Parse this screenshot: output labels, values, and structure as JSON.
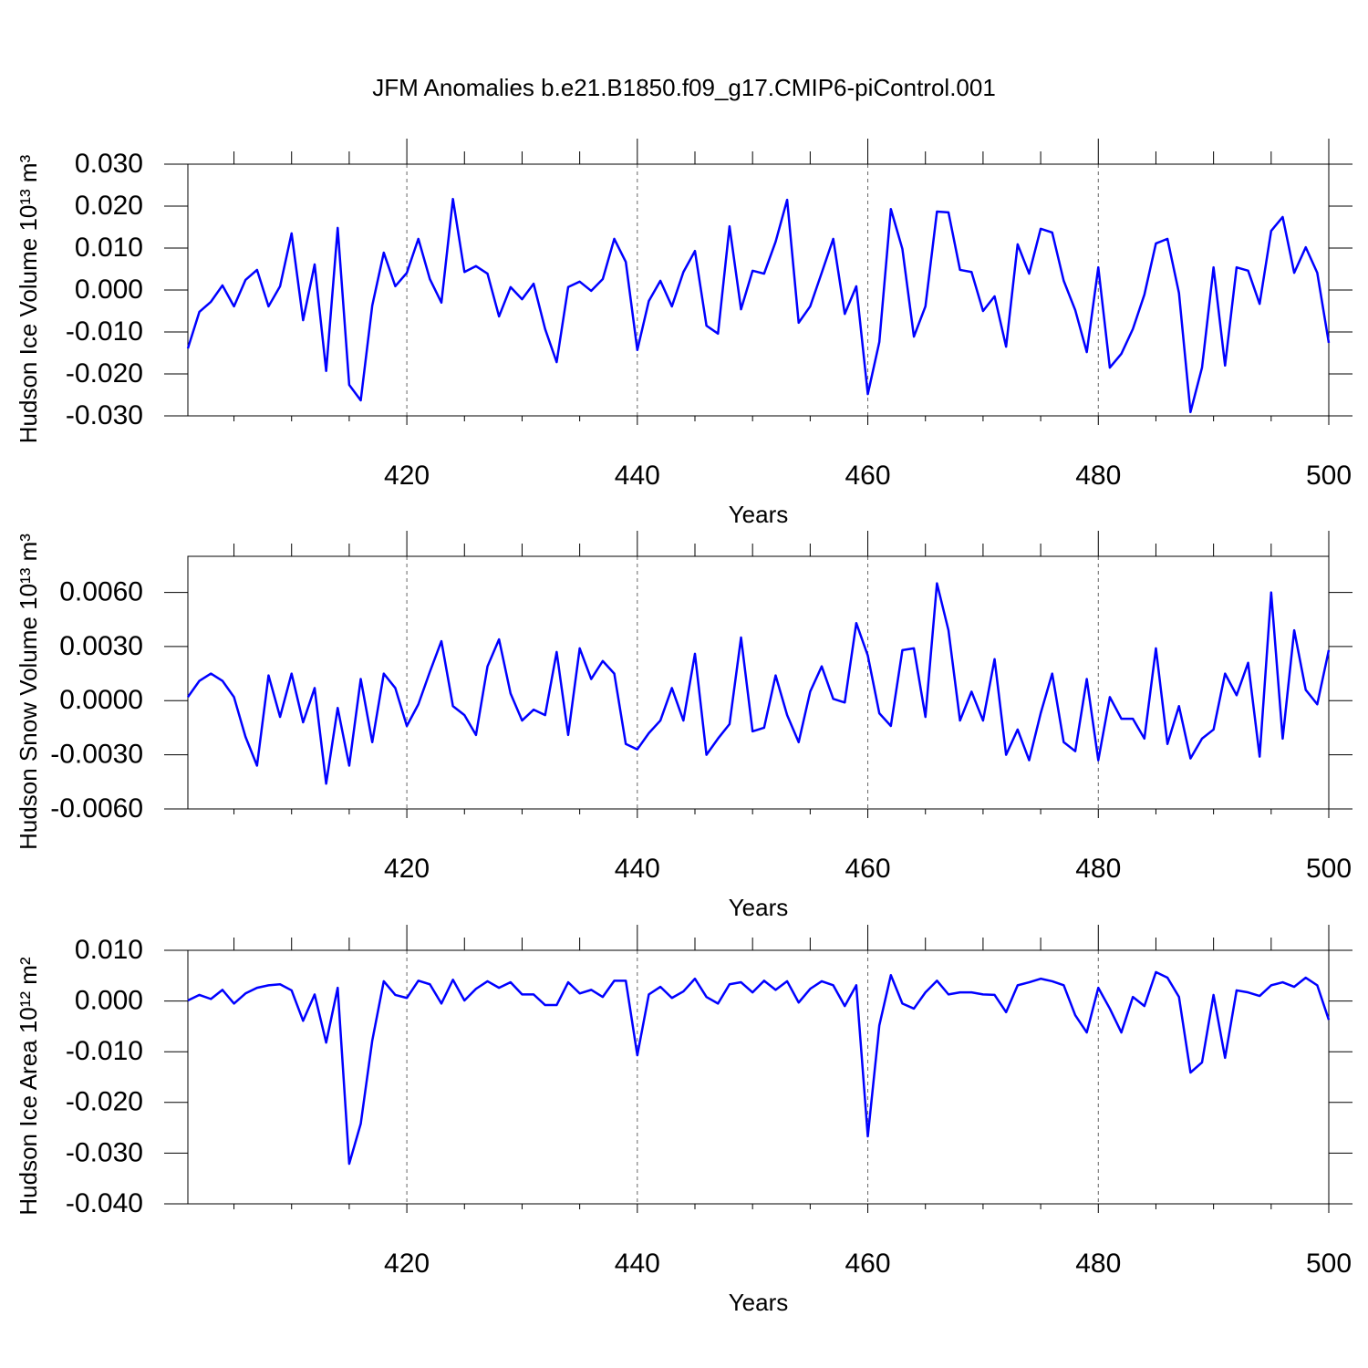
{
  "title": "JFM Anomalies b.e21.B1850.f09_g17.CMIP6-piControl.001",
  "chart_data": [
    {
      "type": "line",
      "ylabel": "Hudson Ice Volume 10¹³ m³",
      "xlabel": "Years",
      "x": [
        401,
        402,
        403,
        404,
        405,
        406,
        407,
        408,
        409,
        410,
        411,
        412,
        413,
        414,
        415,
        416,
        417,
        418,
        419,
        420,
        421,
        422,
        423,
        424,
        425,
        426,
        427,
        428,
        429,
        430,
        431,
        432,
        433,
        434,
        435,
        436,
        437,
        438,
        439,
        440,
        441,
        442,
        443,
        444,
        445,
        446,
        447,
        448,
        449,
        450,
        451,
        452,
        453,
        454,
        455,
        456,
        457,
        458,
        459,
        460,
        461,
        462,
        463,
        464,
        465,
        466,
        467,
        468,
        469,
        470,
        471,
        472,
        473,
        474,
        475,
        476,
        477,
        478,
        479,
        480,
        481,
        482,
        483,
        484,
        485,
        486,
        487,
        488,
        489,
        490,
        491,
        492,
        493,
        494,
        495,
        496,
        497,
        498,
        499,
        500
      ],
      "xlim": [
        401,
        500
      ],
      "xticks": [
        420,
        440,
        460,
        480,
        500
      ],
      "xminorticks": [
        405,
        410,
        415,
        425,
        430,
        435,
        445,
        450,
        455,
        465,
        470,
        475,
        485,
        490,
        495
      ],
      "xgrid": true,
      "ylim": [
        -0.03,
        0.03
      ],
      "yticks": [
        {
          "value": -0.03,
          "label": "-0.030"
        },
        {
          "value": -0.02,
          "label": "-0.020"
        },
        {
          "value": -0.01,
          "label": "-0.010"
        },
        {
          "value": 0,
          "label": "0.000"
        },
        {
          "value": 0.01,
          "label": "0.010"
        },
        {
          "value": 0.02,
          "label": "0.020"
        },
        {
          "value": 0.03,
          "label": "0.030"
        }
      ],
      "series": [
        {
          "color": "#0000ff",
          "values": [
            -0.0139,
            -0.0052,
            -0.0028,
            0.0011,
            -0.0039,
            0.0024,
            0.0048,
            -0.0039,
            0.0009,
            0.0135,
            -0.0072,
            0.0061,
            -0.0193,
            0.0148,
            -0.0226,
            -0.0263,
            -0.0037,
            0.0089,
            0.0009,
            0.0041,
            0.0122,
            0.0026,
            -0.003,
            0.0217,
            0.0043,
            0.0057,
            0.0039,
            -0.0063,
            0.0007,
            -0.0022,
            0.0015,
            -0.0093,
            -0.0172,
            0.0007,
            0.002,
            -0.0002,
            0.0026,
            0.0122,
            0.0067,
            -0.0143,
            -0.0026,
            0.0022,
            -0.0039,
            0.0043,
            0.0093,
            -0.0085,
            -0.0104,
            0.0152,
            -0.0046,
            0.0046,
            0.0039,
            0.0115,
            0.0215,
            -0.0078,
            -0.0039,
            0.0041,
            0.0122,
            -0.0057,
            0.0009,
            -0.0248,
            -0.0124,
            0.0193,
            0.0098,
            -0.0111,
            -0.0039,
            0.0187,
            0.0185,
            0.0048,
            0.0043,
            -0.005,
            -0.0015,
            -0.0135,
            0.0109,
            0.0039,
            0.0146,
            0.0137,
            0.0022,
            -0.0048,
            -0.0148,
            0.0054,
            -0.0185,
            -0.0152,
            -0.0093,
            -0.0011,
            0.0111,
            0.0122,
            -0.0007,
            -0.0291,
            -0.0185,
            0.0054,
            -0.018,
            0.0054,
            0.0046,
            -0.0033,
            0.0141,
            0.0174,
            0.0041,
            0.0102,
            0.0041,
            -0.0126
          ]
        }
      ]
    },
    {
      "type": "line",
      "ylabel": "Hudson Snow Volume 10¹³ m³",
      "xlabel": "Years",
      "x": [
        401,
        402,
        403,
        404,
        405,
        406,
        407,
        408,
        409,
        410,
        411,
        412,
        413,
        414,
        415,
        416,
        417,
        418,
        419,
        420,
        421,
        422,
        423,
        424,
        425,
        426,
        427,
        428,
        429,
        430,
        431,
        432,
        433,
        434,
        435,
        436,
        437,
        438,
        439,
        440,
        441,
        442,
        443,
        444,
        445,
        446,
        447,
        448,
        449,
        450,
        451,
        452,
        453,
        454,
        455,
        456,
        457,
        458,
        459,
        460,
        461,
        462,
        463,
        464,
        465,
        466,
        467,
        468,
        469,
        470,
        471,
        472,
        473,
        474,
        475,
        476,
        477,
        478,
        479,
        480,
        481,
        482,
        483,
        484,
        485,
        486,
        487,
        488,
        489,
        490,
        491,
        492,
        493,
        494,
        495,
        496,
        497,
        498,
        499,
        500
      ],
      "xlim": [
        401,
        500
      ],
      "xticks": [
        420,
        440,
        460,
        480,
        500
      ],
      "xminorticks": [
        405,
        410,
        415,
        425,
        430,
        435,
        445,
        450,
        455,
        465,
        470,
        475,
        485,
        490,
        495
      ],
      "xgrid": true,
      "ylim": [
        -0.006,
        0.008
      ],
      "yticks": [
        {
          "value": -0.006,
          "label": "-0.0060"
        },
        {
          "value": -0.003,
          "label": "-0.0030"
        },
        {
          "value": 0,
          "label": "0.0000"
        },
        {
          "value": 0.003,
          "label": "0.0030"
        },
        {
          "value": 0.006,
          "label": "0.0060"
        }
      ],
      "series": [
        {
          "color": "#0000ff",
          "values": [
            0.0002,
            0.0011,
            0.0015,
            0.0011,
            0.0002,
            -0.002,
            -0.0036,
            0.0014,
            -0.0009,
            0.0015,
            -0.0012,
            0.0007,
            -0.0046,
            -0.0004,
            -0.0036,
            0.0012,
            -0.0023,
            0.0015,
            0.0007,
            -0.0014,
            -0.0002,
            0.0016,
            0.0033,
            -0.0003,
            -0.0008,
            -0.0019,
            0.0019,
            0.0034,
            0.0004,
            -0.0011,
            -0.0005,
            -0.0008,
            0.0027,
            -0.0019,
            0.0029,
            0.0012,
            0.0022,
            0.0015,
            -0.0024,
            -0.0027,
            -0.0018,
            -0.0011,
            0.0007,
            -0.0011,
            0.0026,
            -0.003,
            -0.0021,
            -0.0013,
            0.0035,
            -0.0017,
            -0.0015,
            0.0014,
            -0.0008,
            -0.0023,
            0.0005,
            0.0019,
            0.0001,
            -0.0001,
            0.0043,
            0.0025,
            -0.0007,
            -0.0014,
            0.0028,
            0.0029,
            -0.0009,
            0.0065,
            0.0039,
            -0.0011,
            0.0005,
            -0.0011,
            0.0023,
            -0.003,
            -0.0016,
            -0.0033,
            -0.0007,
            0.0015,
            -0.0023,
            -0.0028,
            0.0012,
            -0.0033,
            0.0002,
            -0.001,
            -0.001,
            -0.0021,
            0.0029,
            -0.0024,
            -0.0003,
            -0.0032,
            -0.0021,
            -0.0016,
            0.0015,
            0.0003,
            0.0021,
            -0.0031,
            0.006,
            -0.0021,
            0.0039,
            0.0006,
            -0.0002,
            0.0028
          ]
        }
      ]
    },
    {
      "type": "line",
      "ylabel": "Hudson Ice Area 10¹² m²",
      "xlabel": "Years",
      "x": [
        401,
        402,
        403,
        404,
        405,
        406,
        407,
        408,
        409,
        410,
        411,
        412,
        413,
        414,
        415,
        416,
        417,
        418,
        419,
        420,
        421,
        422,
        423,
        424,
        425,
        426,
        427,
        428,
        429,
        430,
        431,
        432,
        433,
        434,
        435,
        436,
        437,
        438,
        439,
        440,
        441,
        442,
        443,
        444,
        445,
        446,
        447,
        448,
        449,
        450,
        451,
        452,
        453,
        454,
        455,
        456,
        457,
        458,
        459,
        460,
        461,
        462,
        463,
        464,
        465,
        466,
        467,
        468,
        469,
        470,
        471,
        472,
        473,
        474,
        475,
        476,
        477,
        478,
        479,
        480,
        481,
        482,
        483,
        484,
        485,
        486,
        487,
        488,
        489,
        490,
        491,
        492,
        493,
        494,
        495,
        496,
        497,
        498,
        499,
        500
      ],
      "xlim": [
        401,
        500
      ],
      "xticks": [
        420,
        440,
        460,
        480,
        500
      ],
      "xminorticks": [
        405,
        410,
        415,
        425,
        430,
        435,
        445,
        450,
        455,
        465,
        470,
        475,
        485,
        490,
        495
      ],
      "xgrid": true,
      "ylim": [
        -0.04,
        0.01
      ],
      "yticks": [
        {
          "value": -0.04,
          "label": "-0.040"
        },
        {
          "value": -0.03,
          "label": "-0.030"
        },
        {
          "value": -0.02,
          "label": "-0.020"
        },
        {
          "value": -0.01,
          "label": "-0.010"
        },
        {
          "value": 0,
          "label": "0.000"
        },
        {
          "value": 0.01,
          "label": "0.010"
        }
      ],
      "series": [
        {
          "color": "#0000ff",
          "values": [
            0.0001,
            0.0012,
            0.0004,
            0.0022,
            -0.0005,
            0.0015,
            0.0026,
            0.0031,
            0.0033,
            0.0021,
            -0.0039,
            0.0013,
            -0.0082,
            0.0026,
            -0.0321,
            -0.0242,
            -0.0078,
            0.0039,
            0.0012,
            0.0006,
            0.004,
            0.0033,
            -0.0005,
            0.0042,
            0.0001,
            0.0024,
            0.0039,
            0.0026,
            0.0037,
            0.0013,
            0.0013,
            -0.0008,
            -0.0008,
            0.0037,
            0.0015,
            0.0022,
            0.0008,
            0.004,
            0.004,
            -0.0107,
            0.0013,
            0.0028,
            0.0006,
            0.0019,
            0.0044,
            0.0008,
            -0.0005,
            0.0033,
            0.0037,
            0.0017,
            0.004,
            0.0022,
            0.0039,
            -0.0003,
            0.0024,
            0.0039,
            0.0031,
            -0.001,
            0.0031,
            -0.0267,
            -0.0048,
            0.0051,
            -0.0005,
            -0.0015,
            0.0017,
            0.004,
            0.0013,
            0.0017,
            0.0017,
            0.0013,
            0.0012,
            -0.0022,
            0.0031,
            0.0037,
            0.0044,
            0.0039,
            0.0031,
            -0.0028,
            -0.0062,
            0.0026,
            -0.0015,
            -0.0062,
            0.0008,
            -0.001,
            0.0057,
            0.0046,
            0.0008,
            -0.0141,
            -0.0121,
            0.0012,
            -0.0112,
            0.0021,
            0.0017,
            0.001,
            0.0031,
            0.0037,
            0.0028,
            0.0046,
            0.0031,
            -0.0037
          ]
        }
      ]
    }
  ]
}
